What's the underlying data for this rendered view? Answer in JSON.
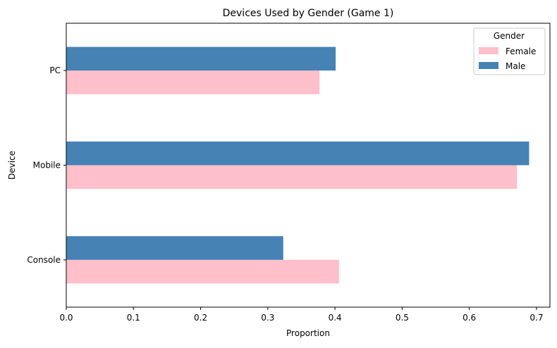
{
  "chart_data": {
    "type": "bar",
    "orientation": "horizontal",
    "title": "Devices Used by Gender (Game 1)",
    "xlabel": "Proportion",
    "ylabel": "Device",
    "categories": [
      "Console",
      "Mobile",
      "PC"
    ],
    "xlim": [
      0,
      0.72
    ],
    "xticks": [
      "0.0",
      "0.1",
      "0.2",
      "0.3",
      "0.4",
      "0.5",
      "0.6",
      "0.7"
    ],
    "grid": false,
    "legend": {
      "title": "Gender",
      "placement": "top-right"
    },
    "series": [
      {
        "name": "Female",
        "color": "#ffc0cb",
        "values": [
          0.406,
          0.671,
          0.377
        ]
      },
      {
        "name": "Male",
        "color": "#4682b4",
        "values": [
          0.323,
          0.689,
          0.401
        ]
      }
    ]
  }
}
